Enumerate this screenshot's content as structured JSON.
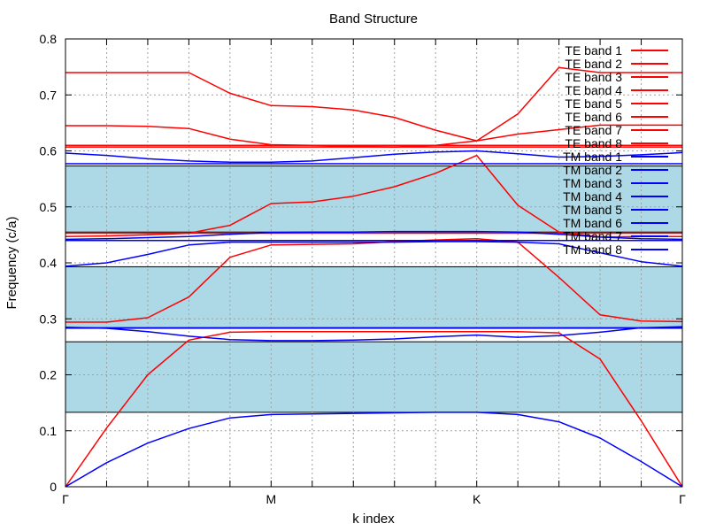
{
  "chart_data": {
    "type": "line",
    "title": "Band Structure",
    "xlabel": "k index",
    "ylabel": "Frequency (c/a)",
    "xlim": [
      0,
      15
    ],
    "ylim": [
      0,
      0.8
    ],
    "grid": true,
    "legend_position": "top-right",
    "x": [
      0,
      1,
      2,
      3,
      4,
      5,
      6,
      7,
      8,
      9,
      10,
      11,
      12,
      13,
      14,
      15
    ],
    "x_ticks": [
      {
        "value": 0,
        "label": "Γ"
      },
      {
        "value": 5,
        "label": "M"
      },
      {
        "value": 10,
        "label": "K"
      },
      {
        "value": 15,
        "label": "Γ"
      }
    ],
    "y_ticks": [
      {
        "value": 0,
        "label": "0"
      },
      {
        "value": 0.1,
        "label": "0.1"
      },
      {
        "value": 0.2,
        "label": "0.2"
      },
      {
        "value": 0.3,
        "label": "0.3"
      },
      {
        "value": 0.4,
        "label": "0.4"
      },
      {
        "value": 0.5,
        "label": "0.5"
      },
      {
        "value": 0.6,
        "label": "0.6"
      },
      {
        "value": 0.7,
        "label": "0.7"
      },
      {
        "value": 0.8,
        "label": "0.8"
      }
    ],
    "band_gaps": [
      {
        "from": 0.133,
        "to": 0.259,
        "color": "#add8e6"
      },
      {
        "from": 0.283,
        "to": 0.393,
        "color": "#add8e6"
      },
      {
        "from": 0.455,
        "to": 0.573,
        "color": "#add8e6"
      }
    ],
    "series": [
      {
        "name": "TE band 1",
        "color": "#ff0000",
        "values": [
          0.0,
          0.105,
          0.2,
          0.262,
          0.276,
          0.277,
          0.277,
          0.277,
          0.277,
          0.277,
          0.277,
          0.277,
          0.275,
          0.228,
          0.118,
          0.0
        ]
      },
      {
        "name": "TE band 2",
        "color": "#ff0000",
        "values": [
          0.294,
          0.294,
          0.302,
          0.339,
          0.41,
          0.432,
          0.433,
          0.434,
          0.438,
          0.441,
          0.443,
          0.437,
          0.374,
          0.307,
          0.296,
          0.295
        ]
      },
      {
        "name": "TE band 3",
        "color": "#ff0000",
        "values": [
          0.447,
          0.448,
          0.45,
          0.453,
          0.467,
          0.506,
          0.509,
          0.519,
          0.536,
          0.56,
          0.592,
          0.503,
          0.455,
          0.446,
          0.447,
          0.447
        ]
      },
      {
        "name": "TE band 4",
        "color": "#ff0000",
        "values": [
          0.61,
          0.61,
          0.61,
          0.61,
          0.61,
          0.61,
          0.61,
          0.61,
          0.61,
          0.61,
          0.61,
          0.61,
          0.61,
          0.61,
          0.61,
          0.61
        ]
      },
      {
        "name": "TE band 5",
        "color": "#ff0000",
        "values": [
          0.645,
          0.645,
          0.644,
          0.64,
          0.621,
          0.611,
          0.61,
          0.608,
          0.607,
          0.61,
          0.618,
          0.63,
          0.638,
          0.646,
          0.646,
          0.646
        ]
      },
      {
        "name": "TE band 6",
        "color": "#ff0000",
        "values": [
          0.74,
          0.74,
          0.74,
          0.74,
          0.703,
          0.681,
          0.679,
          0.673,
          0.66,
          0.637,
          0.618,
          0.666,
          0.749,
          0.74,
          0.74,
          0.74
        ]
      },
      {
        "name": "TE band 7",
        "color": "#ff0000",
        "values": [
          0.607,
          0.607,
          0.607,
          0.607,
          0.607,
          0.607,
          0.607,
          0.607,
          0.607,
          0.607,
          0.607,
          0.607,
          0.607,
          0.607,
          0.607,
          0.607
        ]
      },
      {
        "name": "TE band 8",
        "color": "#ff0000",
        "values": [
          0.453,
          0.453,
          0.453,
          0.453,
          0.453,
          0.453,
          0.453,
          0.453,
          0.453,
          0.453,
          0.453,
          0.453,
          0.453,
          0.453,
          0.453,
          0.453
        ]
      },
      {
        "name": "TM band 1",
        "color": "#0000ff",
        "values": [
          0.0,
          0.043,
          0.078,
          0.104,
          0.123,
          0.129,
          0.13,
          0.131,
          0.132,
          0.133,
          0.133,
          0.129,
          0.116,
          0.087,
          0.045,
          0.0
        ]
      },
      {
        "name": "TM band 2",
        "color": "#0000ff",
        "values": [
          0.285,
          0.283,
          0.277,
          0.269,
          0.263,
          0.261,
          0.261,
          0.262,
          0.264,
          0.268,
          0.271,
          0.267,
          0.27,
          0.276,
          0.284,
          0.286
        ]
      },
      {
        "name": "TM band 3",
        "color": "#0000ff",
        "values": [
          0.394,
          0.4,
          0.415,
          0.432,
          0.437,
          0.437,
          0.437,
          0.437,
          0.437,
          0.438,
          0.438,
          0.437,
          0.434,
          0.418,
          0.402,
          0.394
        ]
      },
      {
        "name": "TM band 4",
        "color": "#0000ff",
        "values": [
          0.442,
          0.443,
          0.445,
          0.447,
          0.451,
          0.454,
          0.455,
          0.455,
          0.456,
          0.456,
          0.456,
          0.455,
          0.451,
          0.446,
          0.443,
          0.442
        ]
      },
      {
        "name": "TM band 5",
        "color": "#0000ff",
        "values": [
          0.596,
          0.592,
          0.586,
          0.582,
          0.58,
          0.58,
          0.582,
          0.588,
          0.594,
          0.598,
          0.6,
          0.595,
          0.589,
          0.59,
          0.593,
          0.597
        ]
      },
      {
        "name": "TM band 6",
        "color": "#0000ff",
        "values": [
          0.577,
          0.577,
          0.577,
          0.577,
          0.577,
          0.577,
          0.577,
          0.577,
          0.577,
          0.577,
          0.577,
          0.577,
          0.577,
          0.577,
          0.577,
          0.577
        ]
      },
      {
        "name": "TM band 7",
        "color": "#0000ff",
        "values": [
          0.284,
          0.284,
          0.284,
          0.284,
          0.284,
          0.284,
          0.284,
          0.284,
          0.284,
          0.284,
          0.284,
          0.284,
          0.284,
          0.284,
          0.284,
          0.284
        ]
      },
      {
        "name": "TM band 8",
        "color": "#0000ff",
        "values": [
          0.44,
          0.44,
          0.44,
          0.44,
          0.44,
          0.44,
          0.44,
          0.44,
          0.44,
          0.44,
          0.44,
          0.44,
          0.44,
          0.44,
          0.44,
          0.44
        ]
      }
    ]
  }
}
